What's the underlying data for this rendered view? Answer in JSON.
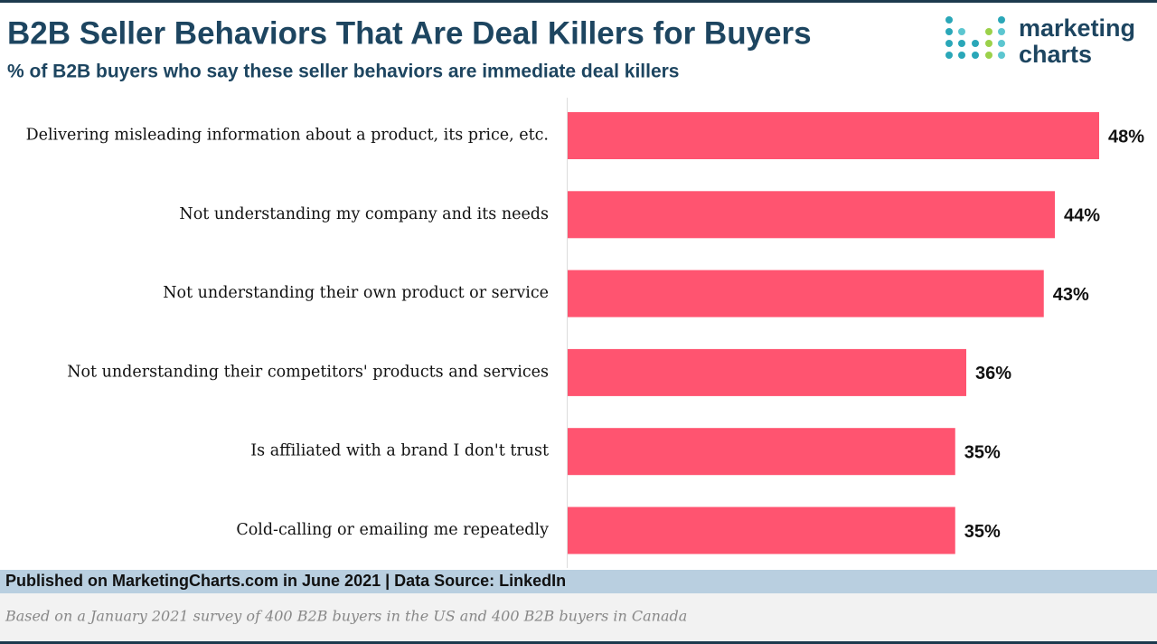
{
  "chart_data": {
    "type": "bar",
    "orientation": "horizontal",
    "title": "B2B Seller Behaviors That Are Deal Killers for Buyers",
    "subtitle": "% of B2B buyers who say these seller behaviors are immediate deal killers",
    "categories": [
      "Delivering misleading information about a product, its price, etc.",
      "Not understanding my company and its needs",
      "Not understanding their own product or service",
      "Not understanding their competitors' products and services",
      "Is affiliated with a brand I don't trust",
      "Cold-calling or emailing me repeatedly"
    ],
    "values": [
      48,
      44,
      43,
      36,
      35,
      35
    ],
    "value_labels": [
      "48%",
      "44%",
      "43%",
      "36%",
      "35%",
      "35%"
    ],
    "color": "#ff5470"
  },
  "logo": {
    "line1": "marketing",
    "line2": "charts"
  },
  "footer": {
    "source": "Published on MarketingCharts.com in June 2021 | Data Source: LinkedIn",
    "note": "Based on a January 2021 survey of 400 B2B buyers in the US and 400 B2B buyers in Canada"
  }
}
